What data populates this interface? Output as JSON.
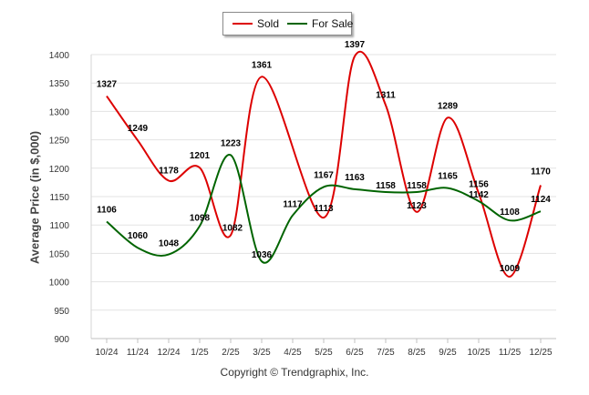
{
  "chart_data": {
    "type": "line",
    "title": "",
    "xlabel": "",
    "ylabel": "Average Price (in $,000)",
    "ylim": [
      900,
      1400
    ],
    "yticks": [
      900,
      950,
      1000,
      1050,
      1100,
      1150,
      1200,
      1250,
      1300,
      1350,
      1400
    ],
    "categories": [
      "10/24",
      "11/24",
      "12/24",
      "1/25",
      "2/25",
      "3/25",
      "4/25",
      "5/25",
      "6/25",
      "7/25",
      "8/25",
      "9/25",
      "10/25",
      "11/25",
      "12/25"
    ],
    "legend_position": "top-center",
    "series": [
      {
        "name": "Sold",
        "color": "#dd0000",
        "values": [
          1327,
          1249,
          1178,
          1201,
          1082,
          1361,
          null,
          1113,
          1397,
          1311,
          1123,
          1289,
          1156,
          1009,
          1170
        ]
      },
      {
        "name": "For Sale",
        "color": "#006400",
        "values": [
          1106,
          1060,
          1048,
          1098,
          1223,
          1036,
          1117,
          1167,
          1163,
          1158,
          1158,
          1165,
          1142,
          1108,
          1124
        ]
      }
    ]
  },
  "legend": {
    "sold_label": "Sold",
    "for_sale_label": "For Sale"
  },
  "footer": {
    "copyright": "Copyright © Trendgraphix, Inc."
  }
}
